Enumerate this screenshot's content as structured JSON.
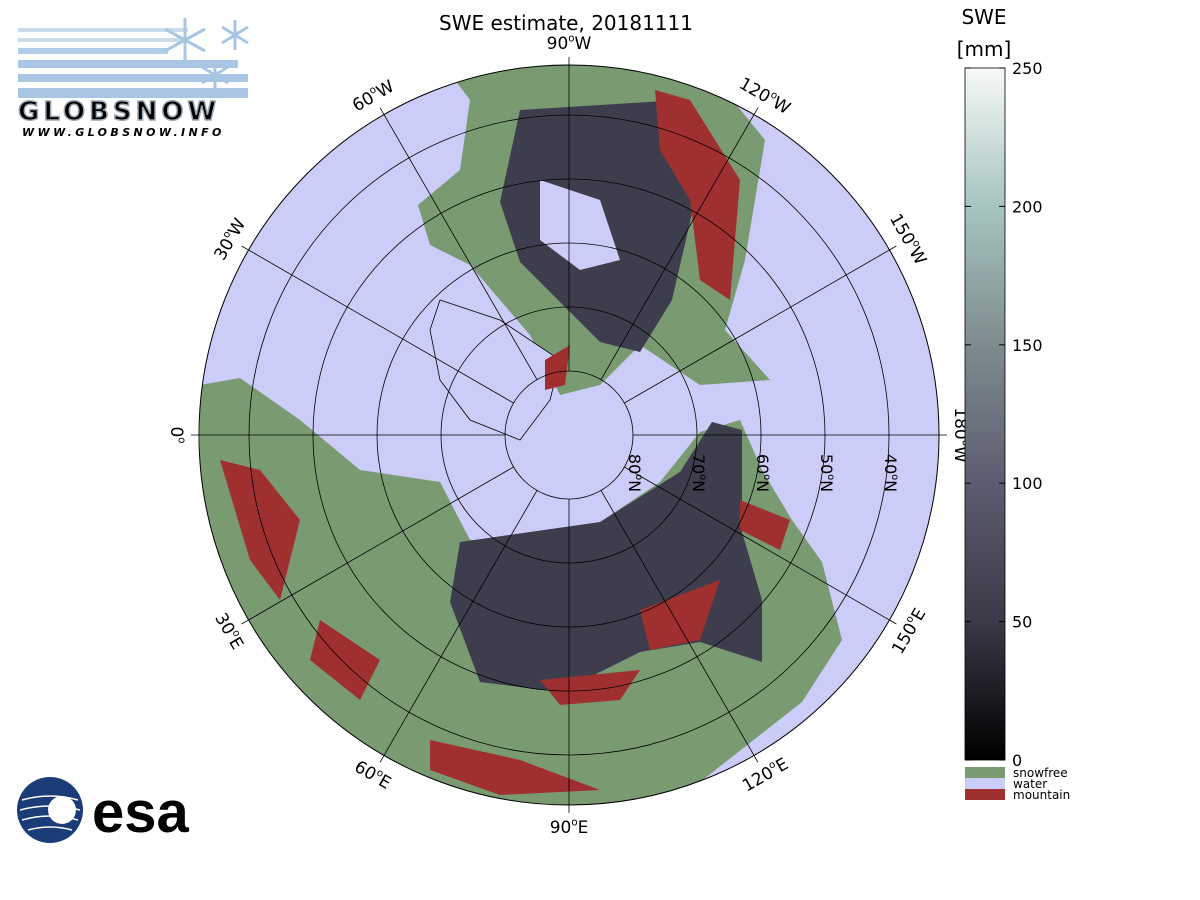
{
  "title": "SWE estimate, 20181111",
  "colorbar": {
    "label": "SWE",
    "unit": "[mm]",
    "lim": [
      0,
      250
    ],
    "ticks": [
      0,
      50,
      100,
      150,
      200,
      250
    ]
  },
  "legend": [
    {
      "name": "snowfree",
      "color": "#7a9a72"
    },
    {
      "name": "water",
      "color": "#ccccf8"
    },
    {
      "name": "mountain",
      "color": "#a03030"
    }
  ],
  "meridians": [
    {
      "value": -90,
      "num": "90",
      "sup": "o",
      "dir": "W"
    },
    {
      "value": -120,
      "num": "120",
      "sup": "o",
      "dir": "W"
    },
    {
      "value": -150,
      "num": "150",
      "sup": "o",
      "dir": "W"
    },
    {
      "value": 180,
      "num": "180",
      "sup": "o",
      "dir": "W"
    },
    {
      "value": 150,
      "num": "150",
      "sup": "o",
      "dir": "E"
    },
    {
      "value": 120,
      "num": "120",
      "sup": "o",
      "dir": "E"
    },
    {
      "value": 90,
      "num": "90",
      "sup": "o",
      "dir": "E"
    },
    {
      "value": 60,
      "num": "60",
      "sup": "o",
      "dir": "E"
    },
    {
      "value": 30,
      "num": "30",
      "sup": "o",
      "dir": "E"
    },
    {
      "value": 0,
      "num": "0",
      "sup": "o"
    },
    {
      "value": -30,
      "num": "30",
      "sup": "o",
      "dir": "W"
    },
    {
      "value": -60,
      "num": "60",
      "sup": "o",
      "dir": "W"
    }
  ],
  "parallels": [
    {
      "value": 80,
      "num": "80",
      "sup": "o",
      "dir": "N"
    },
    {
      "value": 70,
      "num": "70",
      "sup": "o",
      "dir": "N"
    },
    {
      "value": 60,
      "num": "60",
      "sup": "o",
      "dir": "N"
    },
    {
      "value": 50,
      "num": "50",
      "sup": "o",
      "dir": "N"
    },
    {
      "value": 40,
      "num": "40",
      "sup": "o",
      "dir": "N"
    }
  ],
  "logos": {
    "globsnow": "GLOBSNOW",
    "globsnow_url": "WWW.GLOBSNOW.INFO",
    "esa": "esa"
  }
}
